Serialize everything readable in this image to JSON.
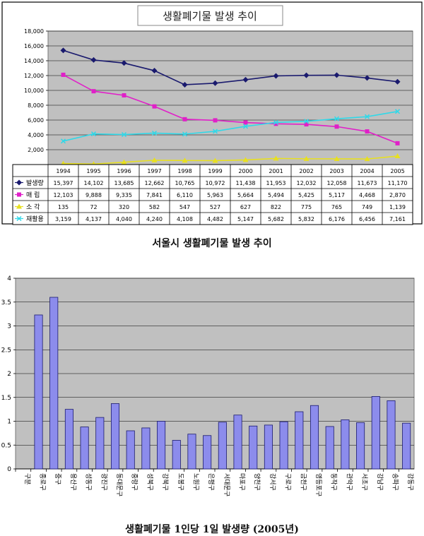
{
  "chart_data": [
    {
      "type": "line",
      "title": "생활폐기물 발생 추이",
      "x": [
        "1994",
        "1995",
        "1996",
        "1997",
        "1998",
        "1999",
        "2000",
        "2001",
        "2002",
        "2003",
        "2004",
        "2005"
      ],
      "ylim": [
        0,
        18000
      ],
      "yticks": [
        "-",
        "2,000",
        "4,000",
        "6,000",
        "8,000",
        "10,000",
        "12,000",
        "14,000",
        "16,000",
        "18,000"
      ],
      "grid": true,
      "legend": "table-below",
      "series": [
        {
          "name": "발생량",
          "color": "#1a1a6e",
          "marker": "diamond",
          "values": [
            15397,
            14102,
            13685,
            12662,
            10765,
            10972,
            11438,
            11953,
            12032,
            12058,
            11673,
            11170
          ],
          "labels": [
            "15,397",
            "14,102",
            "13,685",
            "12,662",
            "10,765",
            "10,972",
            "11,438",
            "11,953",
            "12,032",
            "12,058",
            "11,673",
            "11,170"
          ]
        },
        {
          "name": "매  립",
          "color": "#e020c8",
          "marker": "square",
          "values": [
            12103,
            9888,
            9335,
            7841,
            6110,
            5963,
            5664,
            5494,
            5425,
            5117,
            4468,
            2870
          ],
          "labels": [
            "12,103",
            "9,888",
            "9,335",
            "7,841",
            "6,110",
            "5,963",
            "5,664",
            "5,494",
            "5,425",
            "5,117",
            "4,468",
            "2,870"
          ]
        },
        {
          "name": "소  각",
          "color": "#e8e020",
          "marker": "triangle",
          "values": [
            135,
            72,
            320,
            582,
            547,
            527,
            627,
            822,
            775,
            765,
            749,
            1139
          ],
          "labels": [
            "135",
            "72",
            "320",
            "582",
            "547",
            "527",
            "627",
            "822",
            "775",
            "765",
            "749",
            "1,139"
          ]
        },
        {
          "name": "재활용",
          "color": "#30d8e8",
          "marker": "x",
          "values": [
            3159,
            4137,
            4040,
            4240,
            4108,
            4482,
            5147,
            5682,
            5832,
            6176,
            6456,
            7161
          ],
          "labels": [
            "3,159",
            "4,137",
            "4,040",
            "4,240",
            "4,108",
            "4,482",
            "5,147",
            "5,682",
            "5,832",
            "6,176",
            "6,456",
            "7,161"
          ]
        }
      ]
    },
    {
      "type": "bar",
      "title": "생활폐기물 1인당 1일 발생량 (2005년)",
      "ylim": [
        0,
        4
      ],
      "yticks": [
        "0",
        "0.5",
        "1",
        "1.5",
        "2",
        "2.5",
        "3",
        "3.5",
        "4"
      ],
      "grid": true,
      "color": "#8c8cec",
      "categories": [
        "구분",
        "종로구",
        "중구",
        "용산구",
        "성동구",
        "광진구",
        "동대문구",
        "중랑구",
        "성북구",
        "강북구",
        "도봉구",
        "노원구",
        "은평구",
        "서대문구",
        "마포구",
        "양천구",
        "강서구",
        "구로구",
        "금천구",
        "영등포구",
        "동작구",
        "관악구",
        "서초구",
        "강남구",
        "송파구",
        "강동구"
      ],
      "values": [
        0,
        3.23,
        3.6,
        1.25,
        0.88,
        1.08,
        1.37,
        0.8,
        0.86,
        1.0,
        0.6,
        0.73,
        0.7,
        0.98,
        1.13,
        0.9,
        0.92,
        0.99,
        1.2,
        1.33,
        0.89,
        1.03,
        0.97,
        1.52,
        1.43,
        0.96
      ]
    }
  ],
  "captions": {
    "chart1": "서울시 생활폐기물 발생 추이",
    "chart2": "생활폐기물 1인당 1일 발생량 (2005년)"
  }
}
